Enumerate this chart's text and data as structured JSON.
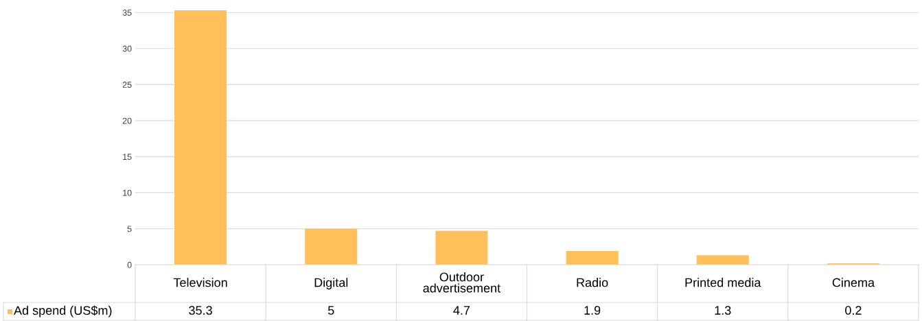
{
  "chart_data": {
    "type": "bar",
    "categories": [
      "Television",
      "Digital",
      "Outdoor advertisement",
      "Radio",
      "Printed media",
      "Cinema"
    ],
    "series": [
      {
        "name": "Ad spend (US$m)",
        "color": "#ffbf5a",
        "values": [
          35.3,
          5,
          4.7,
          1.9,
          1.3,
          0.2
        ]
      }
    ],
    "ylim": [
      0,
      35.5
    ],
    "yticks": [
      0,
      5,
      10,
      15,
      20,
      25,
      30,
      35
    ],
    "grid": "y",
    "data_labels": true,
    "legend": "bottom left"
  }
}
